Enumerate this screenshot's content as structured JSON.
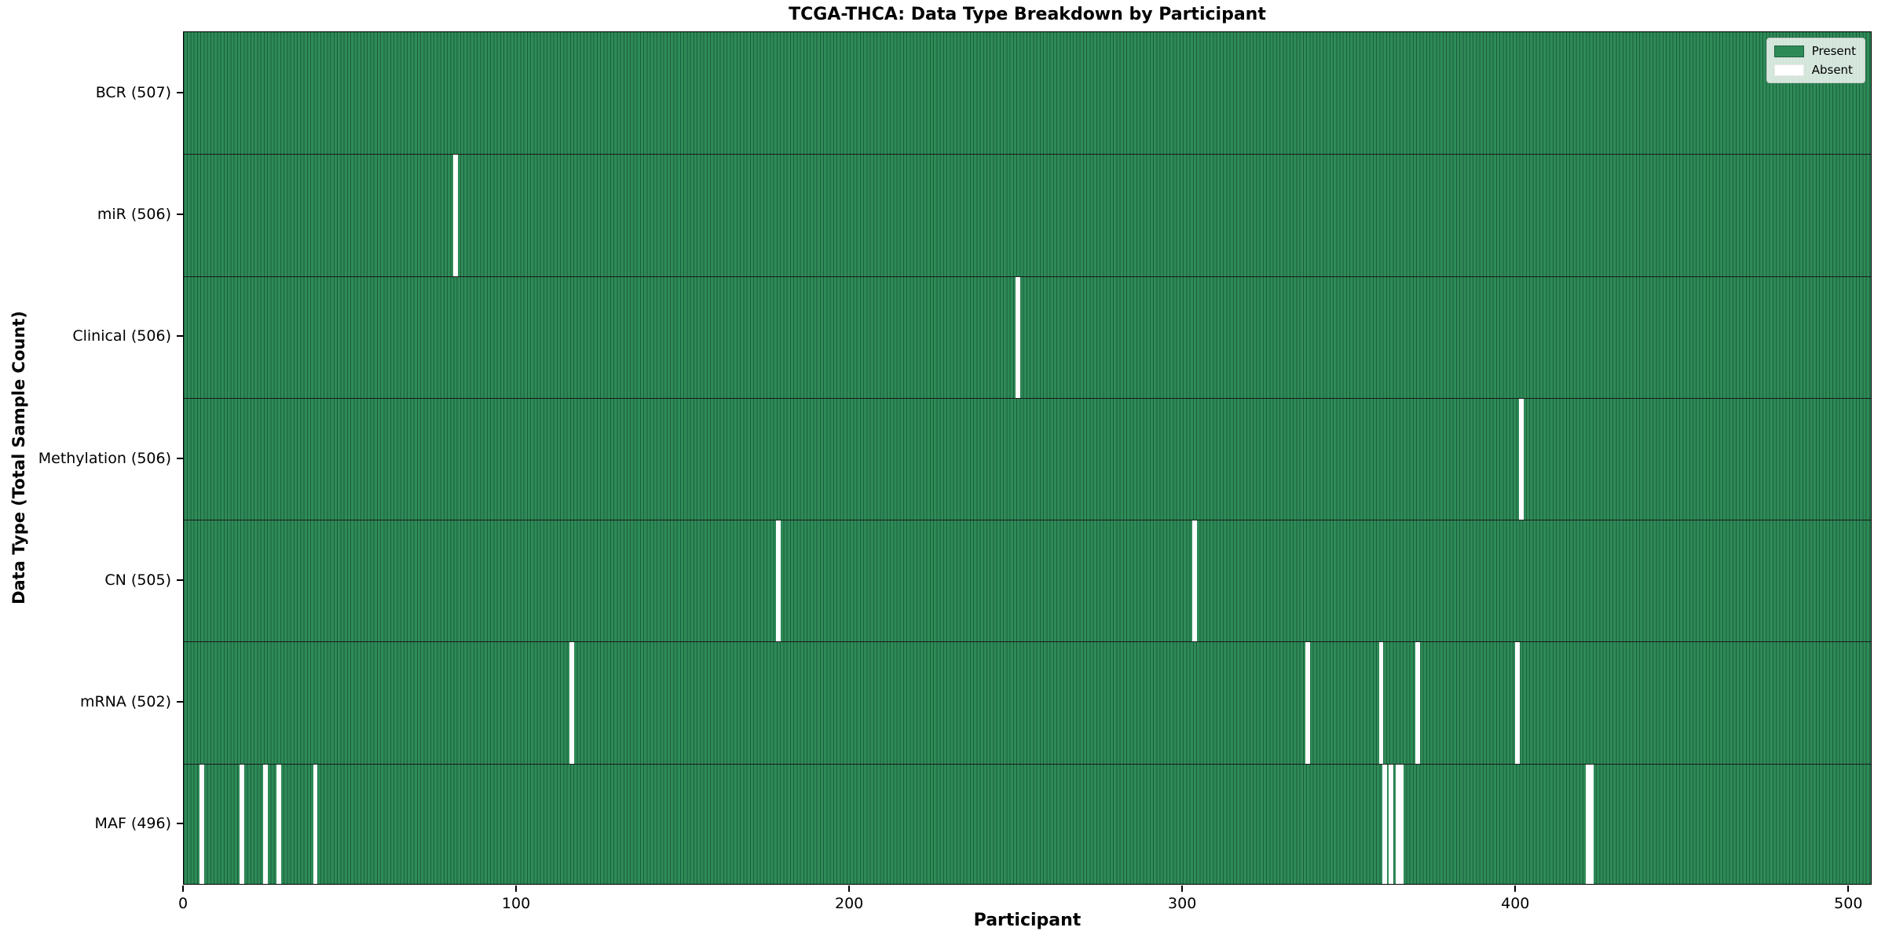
{
  "chart_data": {
    "type": "heatmap",
    "title": "TCGA-THCA: Data Type Breakdown by Participant",
    "xlabel": "Participant",
    "ylabel": "Data Type (Total Sample Count)",
    "xlim": [
      0,
      507
    ],
    "total_participants": 507,
    "grid": false,
    "x_ticks": [
      {
        "value": 0,
        "label": "0"
      },
      {
        "value": 100,
        "label": "100"
      },
      {
        "value": 200,
        "label": "200"
      },
      {
        "value": 300,
        "label": "300"
      },
      {
        "value": 400,
        "label": "400"
      },
      {
        "value": 500,
        "label": "500"
      }
    ],
    "legend": {
      "position": "upper-right",
      "entries": [
        {
          "label": "Present",
          "color": "#2e8b57"
        },
        {
          "label": "Absent",
          "color": "#ffffff"
        }
      ]
    },
    "colors": {
      "present": "#2e8b57",
      "bar_edge": "#1b5e3c",
      "absent": "#ffffff",
      "row_separator": "#1a1a1a",
      "axis": "#000000"
    },
    "rows": [
      {
        "label": "BCR",
        "total_count": 507,
        "axis_label": "BCR (507)",
        "absent_participants": []
      },
      {
        "label": "miR",
        "total_count": 506,
        "axis_label": "miR (506)",
        "absent_participants": [
          81
        ]
      },
      {
        "label": "Clinical",
        "total_count": 506,
        "axis_label": "Clinical (506)",
        "absent_participants": [
          250
        ]
      },
      {
        "label": "Methylation",
        "total_count": 506,
        "axis_label": "Methylation (506)",
        "absent_participants": [
          401
        ]
      },
      {
        "label": "CN",
        "total_count": 505,
        "axis_label": "CN (505)",
        "absent_participants": [
          178,
          303
        ]
      },
      {
        "label": "mRNA",
        "total_count": 502,
        "axis_label": "mRNA (502)",
        "absent_participants": [
          116,
          337,
          359,
          370,
          400
        ]
      },
      {
        "label": "MAF",
        "total_count": 496,
        "axis_label": "MAF (496)",
        "absent_participants": [
          5,
          17,
          24,
          28,
          39,
          360,
          362,
          364,
          365,
          421,
          422
        ]
      }
    ]
  }
}
